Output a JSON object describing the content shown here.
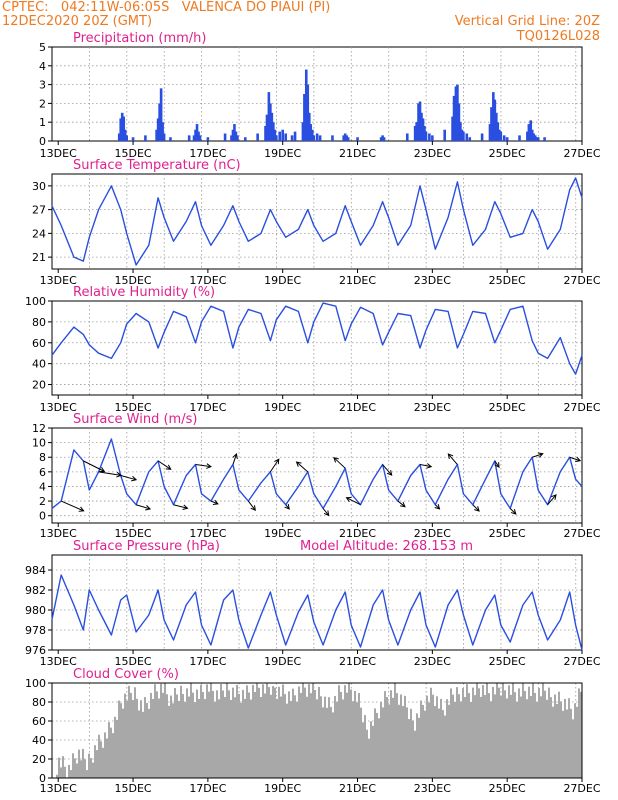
{
  "header": {
    "line1": "CPTEC:   042:11W-06:05S   VALENCA DO PIAUI (PI)",
    "line2": "12DEC2020 20Z (GMT)",
    "grid_note": "Vertical Grid Line: 20Z",
    "run_code": "TQ0126L028"
  },
  "colors": {
    "header_text": "#ee7a22",
    "panel_title": "#e0208f",
    "series": "#2a4fe0",
    "cloud": "#a8a8a8",
    "grid": "#9a9a9a"
  },
  "x_axis": {
    "start": "12DEC2020 20Z",
    "end": "27DEC2020 00Z",
    "tick_labels": [
      "13DEC",
      "15DEC",
      "17DEC",
      "19DEC",
      "21DEC",
      "23DEC",
      "25DEC",
      "27DEC"
    ],
    "tick_days": [
      13,
      15,
      17,
      19,
      21,
      23,
      25,
      27
    ],
    "vertical_grid_note": "20Z"
  },
  "chart_data": [
    {
      "type": "bar",
      "title": "Precipitation (mm/h)",
      "ylim": [
        0,
        5
      ],
      "yticks": [
        0,
        1,
        2,
        3,
        4,
        5
      ],
      "x_days": [
        14.63,
        14.67,
        14.71,
        14.75,
        14.79,
        14.83,
        15.0,
        15.33,
        15.63,
        15.67,
        15.71,
        15.75,
        15.79,
        15.83,
        16.0,
        16.5,
        16.63,
        16.67,
        16.71,
        16.75,
        16.79,
        17.0,
        17.46,
        17.63,
        17.67,
        17.71,
        17.75,
        17.79,
        18.0,
        18.33,
        18.54,
        18.58,
        18.63,
        18.67,
        18.71,
        18.75,
        18.79,
        18.83,
        18.92,
        19.0,
        19.08,
        19.25,
        19.33,
        19.54,
        19.58,
        19.63,
        19.67,
        19.71,
        19.75,
        19.79,
        19.83,
        19.92,
        20.0,
        20.33,
        20.63,
        20.67,
        20.71,
        20.75,
        21.0,
        21.63,
        21.67,
        21.71,
        22.33,
        22.54,
        22.58,
        22.63,
        22.67,
        22.71,
        22.75,
        22.79,
        22.83,
        22.92,
        23.0,
        23.33,
        23.54,
        23.58,
        23.63,
        23.67,
        23.71,
        23.75,
        23.79,
        23.83,
        23.92,
        24.0,
        24.33,
        24.54,
        24.58,
        24.63,
        24.67,
        24.71,
        24.75,
        24.79,
        24.83,
        24.92,
        25.0,
        25.33,
        25.54,
        25.58,
        25.63,
        25.67,
        25.71,
        25.75,
        25.79,
        25.83,
        26.0
      ],
      "values": [
        0.4,
        1.2,
        1.5,
        1.3,
        0.6,
        0.3,
        0.2,
        0.3,
        0.6,
        1.2,
        2.0,
        2.8,
        1.0,
        0.4,
        0.2,
        0.3,
        0.3,
        0.6,
        0.9,
        0.5,
        0.3,
        0.2,
        0.4,
        0.3,
        0.6,
        0.9,
        0.5,
        0.3,
        0.2,
        0.4,
        0.8,
        1.4,
        2.6,
        2.0,
        1.5,
        1.0,
        0.6,
        0.3,
        0.5,
        0.6,
        0.4,
        0.3,
        0.5,
        1.0,
        2.5,
        3.8,
        3.0,
        1.5,
        0.9,
        0.6,
        0.3,
        0.4,
        0.3,
        0.3,
        0.3,
        0.4,
        0.3,
        0.2,
        0.2,
        0.2,
        0.3,
        0.2,
        0.4,
        0.8,
        1.0,
        2.0,
        2.1,
        1.5,
        1.2,
        0.8,
        0.5,
        0.4,
        0.3,
        0.6,
        1.3,
        2.4,
        2.9,
        3.0,
        2.0,
        1.0,
        0.6,
        0.5,
        0.4,
        0.2,
        0.4,
        0.9,
        1.8,
        2.6,
        2.2,
        1.5,
        1.0,
        0.6,
        0.5,
        0.3,
        0.2,
        0.3,
        0.5,
        0.9,
        1.1,
        0.6,
        0.4,
        0.3,
        0.2,
        0.2,
        0.2
      ]
    },
    {
      "type": "line",
      "title": "Surface Temperature (nC)",
      "ylim": [
        19.5,
        31.5
      ],
      "yticks": [
        21,
        24,
        27,
        30
      ],
      "x_days": [
        12.83,
        13.08,
        13.42,
        13.67,
        13.83,
        14.08,
        14.42,
        14.67,
        14.83,
        15.08,
        15.42,
        15.67,
        15.83,
        16.08,
        16.42,
        16.67,
        16.83,
        17.08,
        17.42,
        17.67,
        17.83,
        18.08,
        18.42,
        18.67,
        18.83,
        19.08,
        19.42,
        19.67,
        19.83,
        20.08,
        20.42,
        20.67,
        20.83,
        21.08,
        21.42,
        21.67,
        21.83,
        22.08,
        22.42,
        22.67,
        22.83,
        23.08,
        23.42,
        23.67,
        23.83,
        24.08,
        24.42,
        24.67,
        24.83,
        25.08,
        25.42,
        25.67,
        25.83,
        26.08,
        26.42,
        26.67,
        26.83,
        27.0
      ],
      "series": [
        {
          "values": [
            27.5,
            25.0,
            21.0,
            20.5,
            23.5,
            27.0,
            30.0,
            27.0,
            24.0,
            20.0,
            22.5,
            28.5,
            26.0,
            23.0,
            25.5,
            28.0,
            25.0,
            22.5,
            25.0,
            27.5,
            25.5,
            23.0,
            24.0,
            27.0,
            25.5,
            23.5,
            24.5,
            27.0,
            25.0,
            23.0,
            24.0,
            27.5,
            25.5,
            22.5,
            25.0,
            28.0,
            26.0,
            22.5,
            25.0,
            30.0,
            27.0,
            22.0,
            26.0,
            30.5,
            27.0,
            22.5,
            24.5,
            28.0,
            26.5,
            23.5,
            24.0,
            27.0,
            25.5,
            22.0,
            24.5,
            29.5,
            31.0,
            28.5
          ]
        }
      ]
    },
    {
      "type": "line",
      "title": "Relative Humidity (%)",
      "ylim": [
        10,
        100
      ],
      "yticks": [
        20,
        40,
        60,
        80,
        100
      ],
      "x_days": [
        12.83,
        13.08,
        13.42,
        13.67,
        13.83,
        14.08,
        14.42,
        14.67,
        14.83,
        15.08,
        15.42,
        15.67,
        15.83,
        16.08,
        16.42,
        16.67,
        16.83,
        17.08,
        17.42,
        17.67,
        17.83,
        18.08,
        18.42,
        18.67,
        18.83,
        19.08,
        19.42,
        19.67,
        19.83,
        20.08,
        20.42,
        20.67,
        20.83,
        21.08,
        21.42,
        21.67,
        21.83,
        22.08,
        22.42,
        22.67,
        22.83,
        23.08,
        23.42,
        23.67,
        23.83,
        24.08,
        24.42,
        24.67,
        24.83,
        25.08,
        25.42,
        25.67,
        25.83,
        26.08,
        26.42,
        26.67,
        26.83,
        27.0
      ],
      "series": [
        {
          "values": [
            48,
            60,
            75,
            68,
            58,
            50,
            45,
            60,
            78,
            88,
            80,
            55,
            70,
            90,
            85,
            60,
            80,
            95,
            90,
            55,
            75,
            92,
            88,
            62,
            82,
            95,
            90,
            60,
            80,
            98,
            95,
            62,
            78,
            94,
            88,
            58,
            70,
            88,
            86,
            55,
            72,
            92,
            90,
            55,
            68,
            90,
            88,
            60,
            72,
            92,
            95,
            62,
            50,
            45,
            65,
            40,
            30,
            48
          ]
        }
      ]
    },
    {
      "type": "line",
      "title": "Surface Wind (m/s)",
      "ylim": [
        -1,
        12
      ],
      "yticks": [
        0,
        2,
        4,
        6,
        8,
        10,
        12
      ],
      "x_days": [
        12.83,
        13.08,
        13.42,
        13.67,
        13.83,
        14.08,
        14.42,
        14.67,
        14.83,
        15.08,
        15.42,
        15.67,
        15.83,
        16.08,
        16.42,
        16.67,
        16.83,
        17.08,
        17.42,
        17.67,
        17.83,
        18.08,
        18.42,
        18.67,
        18.83,
        19.08,
        19.42,
        19.67,
        19.83,
        20.08,
        20.42,
        20.67,
        20.83,
        21.08,
        21.42,
        21.67,
        21.83,
        22.08,
        22.42,
        22.67,
        22.83,
        23.08,
        23.42,
        23.67,
        23.83,
        24.08,
        24.42,
        24.67,
        24.83,
        25.08,
        25.42,
        25.67,
        25.83,
        26.08,
        26.42,
        26.67,
        26.83,
        27.0
      ],
      "series": [
        {
          "values": [
            1.0,
            2.0,
            9.0,
            7.5,
            3.5,
            6.0,
            10.5,
            5.5,
            3.0,
            1.5,
            6.0,
            7.5,
            4.0,
            1.5,
            5.5,
            7.0,
            3.0,
            2.0,
            5.0,
            7.0,
            3.5,
            2.0,
            4.5,
            6.0,
            3.0,
            1.5,
            4.0,
            6.0,
            3.0,
            1.0,
            4.0,
            6.5,
            3.0,
            1.5,
            5.0,
            7.0,
            3.5,
            2.0,
            5.5,
            7.0,
            3.5,
            1.5,
            5.0,
            7.0,
            3.0,
            1.5,
            5.0,
            7.5,
            3.0,
            1.0,
            6.0,
            8.0,
            3.5,
            1.5,
            6.0,
            8.0,
            5.0,
            4.0
          ]
        }
      ],
      "wind_arrows": [
        {
          "x_day": 13.08,
          "u": 3.2,
          "v": -1.4
        },
        {
          "x_day": 13.67,
          "u": 3.0,
          "v": -1.5
        },
        {
          "x_day": 14.08,
          "u": 3.2,
          "v": -0.5
        },
        {
          "x_day": 14.67,
          "u": 2.2,
          "v": -0.6
        },
        {
          "x_day": 15.08,
          "u": 2.0,
          "v": -0.6
        },
        {
          "x_day": 15.67,
          "u": 1.8,
          "v": -1.2
        },
        {
          "x_day": 16.08,
          "u": 2.0,
          "v": -0.5
        },
        {
          "x_day": 16.67,
          "u": 2.2,
          "v": -0.3
        },
        {
          "x_day": 17.08,
          "u": 1.0,
          "v": -0.4
        },
        {
          "x_day": 17.67,
          "u": 0.5,
          "v": 1.5
        },
        {
          "x_day": 18.08,
          "u": 1.0,
          "v": -1.3
        },
        {
          "x_day": 18.67,
          "u": 1.2,
          "v": 1.8
        },
        {
          "x_day": 19.08,
          "u": 0.5,
          "v": -0.6
        },
        {
          "x_day": 19.67,
          "u": -1.6,
          "v": 1.4
        },
        {
          "x_day": 20.08,
          "u": 0.8,
          "v": -1.0
        },
        {
          "x_day": 20.67,
          "u": -1.6,
          "v": 1.5
        },
        {
          "x_day": 21.08,
          "u": -2.0,
          "v": 1.0
        },
        {
          "x_day": 21.67,
          "u": 1.3,
          "v": -1.5
        },
        {
          "x_day": 22.08,
          "u": 1.0,
          "v": -0.8
        },
        {
          "x_day": 22.67,
          "u": 1.6,
          "v": -0.3
        },
        {
          "x_day": 23.08,
          "u": 0.6,
          "v": -0.6
        },
        {
          "x_day": 23.67,
          "u": -1.3,
          "v": 1.5
        },
        {
          "x_day": 24.08,
          "u": 0.9,
          "v": -0.9
        },
        {
          "x_day": 24.67,
          "u": 0.6,
          "v": -0.9
        },
        {
          "x_day": 25.08,
          "u": 0.8,
          "v": -0.8
        },
        {
          "x_day": 25.67,
          "u": 1.5,
          "v": 0.5
        },
        {
          "x_day": 26.08,
          "u": 1.2,
          "v": 1.4
        },
        {
          "x_day": 26.67,
          "u": 1.5,
          "v": -0.5
        }
      ]
    },
    {
      "type": "line",
      "title": "Surface Pressure (hPa)",
      "annotation": "Model Altitude: 268.153 m",
      "ylim": [
        976,
        985.5
      ],
      "yticks": [
        976,
        978,
        980,
        982,
        984
      ],
      "x_days": [
        12.83,
        13.08,
        13.42,
        13.67,
        13.83,
        14.08,
        14.42,
        14.67,
        14.83,
        15.08,
        15.42,
        15.67,
        15.83,
        16.08,
        16.42,
        16.67,
        16.83,
        17.08,
        17.42,
        17.67,
        17.83,
        18.08,
        18.42,
        18.67,
        18.83,
        19.08,
        19.42,
        19.67,
        19.83,
        20.08,
        20.42,
        20.67,
        20.83,
        21.08,
        21.42,
        21.67,
        21.83,
        22.08,
        22.42,
        22.67,
        22.83,
        23.08,
        23.42,
        23.67,
        23.83,
        24.08,
        24.42,
        24.67,
        24.83,
        25.08,
        25.42,
        25.67,
        25.83,
        26.08,
        26.42,
        26.67,
        26.83,
        27.0
      ],
      "series": [
        {
          "values": [
            979.0,
            983.5,
            980.5,
            978.0,
            982.0,
            980.0,
            977.5,
            981.0,
            981.5,
            977.8,
            979.5,
            982.0,
            979.0,
            977.0,
            980.5,
            981.8,
            978.5,
            976.5,
            981.0,
            982.0,
            979.0,
            976.2,
            979.5,
            981.8,
            979.5,
            976.5,
            979.8,
            981.5,
            978.8,
            976.5,
            980.0,
            981.8,
            978.5,
            976.3,
            980.5,
            982.0,
            979.0,
            976.5,
            980.0,
            981.8,
            978.5,
            976.3,
            980.5,
            982.0,
            979.5,
            976.5,
            980.0,
            981.5,
            978.5,
            976.8,
            980.5,
            981.8,
            979.5,
            977.0,
            979.0,
            981.8,
            978.5,
            976.0
          ]
        }
      ]
    },
    {
      "type": "area",
      "title": "Cloud Cover (%)",
      "ylim": [
        0,
        100
      ],
      "yticks": [
        0,
        20,
        40,
        60,
        80,
        100
      ],
      "x_days": [
        12.83,
        13.0,
        13.25,
        13.5,
        13.75,
        14.0,
        14.25,
        14.5,
        14.67,
        14.83,
        15.0,
        15.25,
        15.5,
        15.75,
        16.0,
        16.25,
        16.5,
        16.75,
        17.0,
        17.25,
        17.5,
        17.75,
        18.0,
        18.25,
        18.5,
        18.75,
        19.0,
        19.25,
        19.5,
        19.75,
        20.0,
        20.25,
        20.5,
        20.75,
        21.0,
        21.25,
        21.5,
        21.75,
        22.0,
        22.25,
        22.5,
        22.75,
        23.0,
        23.25,
        23.5,
        23.75,
        24.0,
        24.25,
        24.5,
        24.75,
        25.0,
        25.25,
        25.5,
        25.75,
        26.0,
        26.25,
        26.5,
        26.75,
        27.0
      ],
      "series": [
        {
          "values": [
            5,
            18,
            8,
            25,
            15,
            35,
            45,
            60,
            80,
            85,
            90,
            75,
            88,
            95,
            80,
            90,
            92,
            88,
            95,
            85,
            95,
            90,
            88,
            95,
            92,
            96,
            90,
            85,
            95,
            92,
            88,
            75,
            90,
            95,
            80,
            50,
            70,
            85,
            90,
            75,
            60,
            80,
            88,
            70,
            85,
            92,
            90,
            95,
            88,
            93,
            95,
            90,
            92,
            88,
            90,
            85,
            80,
            70,
            95
          ]
        }
      ]
    }
  ]
}
